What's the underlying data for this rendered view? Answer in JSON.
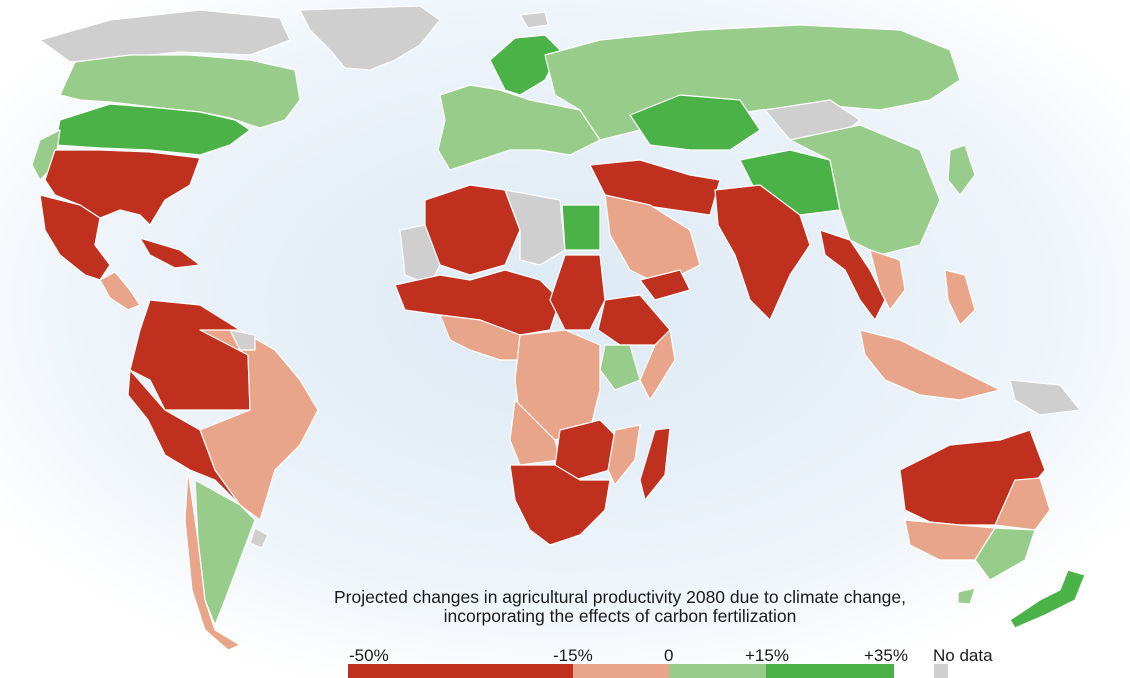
{
  "title": "Projected changes in agricultural productivity 2080 due to climate change, incorporating the effects of carbon fertilization",
  "colors": {
    "strong_loss": "#c0301f",
    "moderate_loss": "#e8a589",
    "moderate_gain": "#98cc8a",
    "strong_gain": "#4bb247",
    "no_data": "#cfcfcf",
    "ocean_glow": "#dce9f4"
  },
  "legend": {
    "labels": [
      "-50%",
      "-15%",
      "0",
      "+15%",
      "+35%"
    ],
    "no_data_label": "No data",
    "classes": [
      {
        "range": "-50% to -15%",
        "color": "#c0301f"
      },
      {
        "range": "-15% to 0",
        "color": "#e8a589"
      },
      {
        "range": "0 to +15%",
        "color": "#98cc8a"
      },
      {
        "range": "+15% to +35%",
        "color": "#4bb247"
      }
    ]
  }
}
